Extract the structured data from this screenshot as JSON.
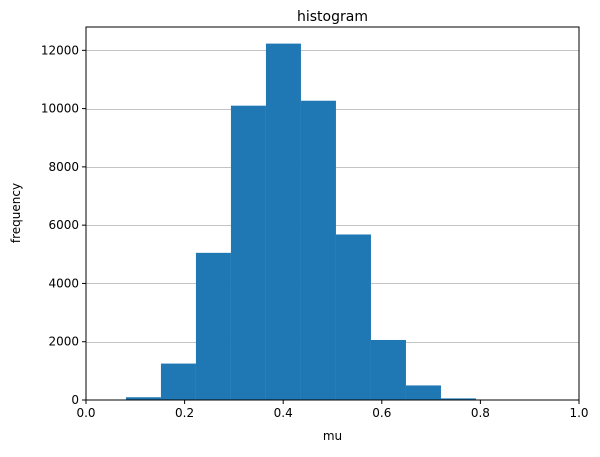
{
  "chart_data": {
    "type": "bar",
    "title": "histogram",
    "xlabel": "mu",
    "ylabel": "frequency",
    "xlim": [
      0.0,
      1.0
    ],
    "ylim": [
      0,
      12800
    ],
    "grid": "y",
    "bar_color": "#1f77b4",
    "bin_width": 0.071,
    "bins": [
      {
        "x0": 0.081,
        "value": 95
      },
      {
        "x0": 0.152,
        "value": 1250
      },
      {
        "x0": 0.223,
        "value": 5050
      },
      {
        "x0": 0.294,
        "value": 10100
      },
      {
        "x0": 0.365,
        "value": 12230
      },
      {
        "x0": 0.436,
        "value": 10270
      },
      {
        "x0": 0.507,
        "value": 5680
      },
      {
        "x0": 0.578,
        "value": 2060
      },
      {
        "x0": 0.649,
        "value": 500
      },
      {
        "x0": 0.72,
        "value": 55
      }
    ],
    "x_ticks": [
      {
        "value": 0.0,
        "label": "0.0"
      },
      {
        "value": 0.2,
        "label": "0.2"
      },
      {
        "value": 0.4,
        "label": "0.4"
      },
      {
        "value": 0.6,
        "label": "0.6"
      },
      {
        "value": 0.8,
        "label": "0.8"
      },
      {
        "value": 1.0,
        "label": "1.0"
      }
    ],
    "y_ticks": [
      {
        "value": 0,
        "label": "0"
      },
      {
        "value": 2000,
        "label": "2000"
      },
      {
        "value": 4000,
        "label": "4000"
      },
      {
        "value": 6000,
        "label": "6000"
      },
      {
        "value": 8000,
        "label": "8000"
      },
      {
        "value": 10000,
        "label": "10000"
      },
      {
        "value": 12000,
        "label": "12000"
      }
    ]
  }
}
